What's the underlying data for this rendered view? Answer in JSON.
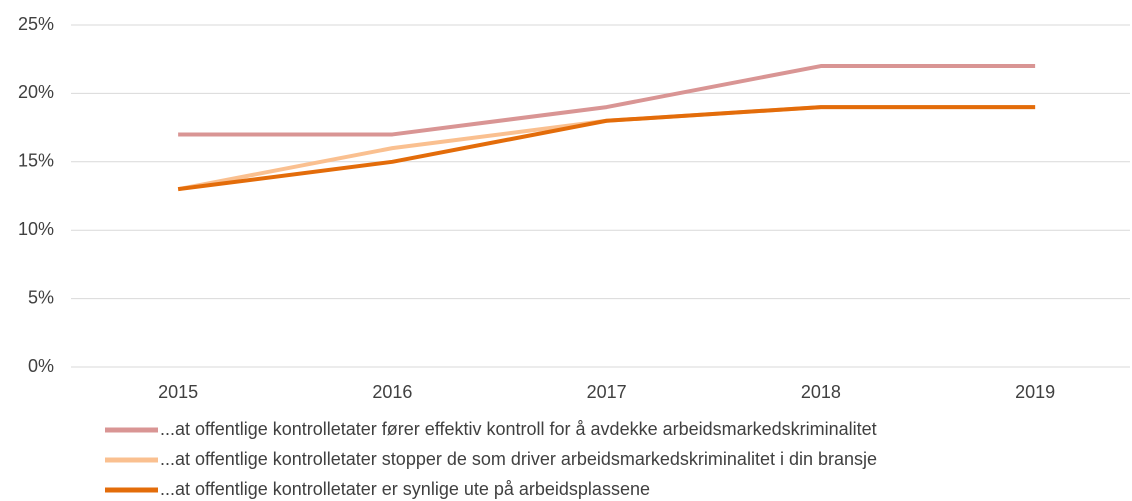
{
  "chart_data": {
    "type": "line",
    "categories": [
      "2015",
      "2016",
      "2017",
      "2018",
      "2019"
    ],
    "series": [
      {
        "name": "...at offentlige kontrolletater fører effektiv kontroll for å avdekke arbeidsmarkedskriminalitet",
        "color": "#d99594",
        "values": [
          17,
          17,
          19,
          22,
          22
        ]
      },
      {
        "name": "...at offentlige kontrolletater stopper de som driver arbeidsmarkedskriminalitet i din bransje",
        "color": "#fac090",
        "values": [
          13,
          16,
          18,
          19,
          19
        ]
      },
      {
        "name": "...at offentlige kontrolletater er synlige ute på arbeidsplassene",
        "color": "#e36c0a",
        "values": [
          13,
          15,
          18,
          19,
          19
        ]
      }
    ],
    "ylim": [
      0,
      25
    ],
    "yticks": [
      {
        "value": 0,
        "label": "0%"
      },
      {
        "value": 5,
        "label": "5%"
      },
      {
        "value": 10,
        "label": "10%"
      },
      {
        "value": 15,
        "label": "15%"
      },
      {
        "value": 20,
        "label": "20%"
      },
      {
        "value": 25,
        "label": "25%"
      }
    ],
    "grid": true,
    "legend": "bottom"
  }
}
